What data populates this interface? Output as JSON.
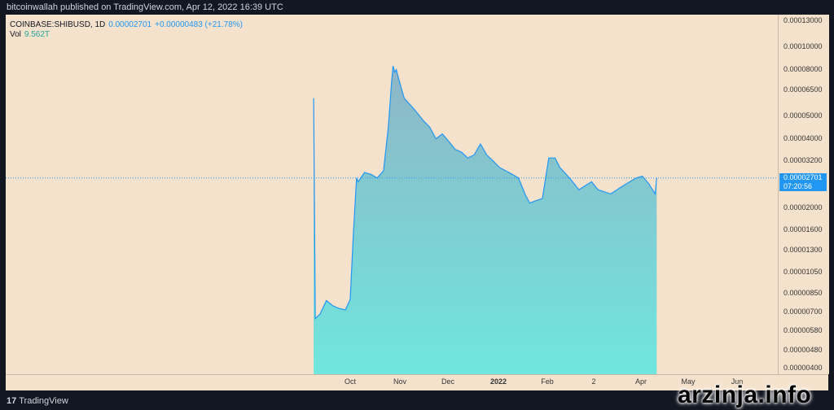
{
  "header": {
    "published": "bitcoinwallah published on TradingView.com, Apr 12, 2022 16:39 UTC"
  },
  "legend": {
    "symbol": "COINBASE:SHIBUSD, 1D",
    "price": "0.00002701",
    "change": "+0.00000483 (+21.78%)",
    "vol_label": "Vol",
    "vol_value": "9.562T"
  },
  "price_tag": {
    "price": "0.00002701",
    "countdown": "07:20:56"
  },
  "footer": {
    "brand": "TradingView",
    "watermark": "arzinja.info"
  },
  "colors": {
    "line": "#2196f3",
    "fill_top": "#8fb5c6",
    "fill_bottom": "#6fe6de",
    "background": "#f5e2cd"
  },
  "chart_data": {
    "type": "area",
    "title": "COINBASE:SHIBUSD, 1D",
    "scale": "log",
    "grid": false,
    "y_ticks": [
      "0.00013000",
      "0.00010000",
      "0.00008000",
      "0.00006500",
      "0.00005000",
      "0.00004000",
      "0.00003200",
      "0.00002000",
      "0.00001600",
      "0.00001300",
      "0.00001050",
      "0.00000850",
      "0.00000700",
      "0.00000580",
      "0.00000480",
      "0.00000400"
    ],
    "x_ticks": [
      "Oct",
      "Nov",
      "Dec",
      "2022",
      "Feb",
      "2",
      "Apr",
      "May",
      "Jun"
    ],
    "current_price": 2.701e-05,
    "series": [
      {
        "x": [
          "2021-09-08",
          "2021-09-09",
          "2021-09-12",
          "2021-09-16",
          "2021-09-20",
          "2021-09-24",
          "2021-09-28",
          "2021-10-01",
          "2021-10-03",
          "2021-10-05",
          "2021-10-06",
          "2021-10-10",
          "2021-10-14",
          "2021-10-18",
          "2021-10-22",
          "2021-10-25",
          "2021-10-27",
          "2021-10-28",
          "2021-10-29",
          "2021-10-30",
          "2021-11-01",
          "2021-11-04",
          "2021-11-08",
          "2021-11-12",
          "2021-11-16",
          "2021-11-20",
          "2021-11-24",
          "2021-11-28",
          "2021-12-02",
          "2021-12-06",
          "2021-12-10",
          "2021-12-14",
          "2021-12-18",
          "2021-12-22",
          "2021-12-26",
          "2021-12-30",
          "2022-01-03",
          "2022-01-07",
          "2022-01-11",
          "2022-01-15",
          "2022-01-19",
          "2022-01-22",
          "2022-01-26",
          "2022-01-30",
          "2022-02-03",
          "2022-02-07",
          "2022-02-10",
          "2022-02-14",
          "2022-02-18",
          "2022-02-22",
          "2022-02-26",
          "2022-03-02",
          "2022-03-06",
          "2022-03-10",
          "2022-03-14",
          "2022-03-18",
          "2022-03-22",
          "2022-03-26",
          "2022-03-30",
          "2022-04-03",
          "2022-04-07",
          "2022-04-11",
          "2022-04-12"
        ],
        "y": [
          6e-05,
          6.6e-06,
          6.9e-06,
          7.9e-06,
          7.5e-06,
          7.3e-06,
          7.2e-06,
          8e-06,
          1.55e-05,
          2.7e-05,
          2.6e-05,
          2.85e-05,
          2.8e-05,
          2.7e-05,
          2.9e-05,
          4.5e-05,
          7e-05,
          8.3e-05,
          7.8e-05,
          8e-05,
          7.1e-05,
          6e-05,
          5.6e-05,
          5.2e-05,
          4.8e-05,
          4.5e-05,
          4e-05,
          4.2e-05,
          3.9e-05,
          3.6e-05,
          3.5e-05,
          3.3e-05,
          3.4e-05,
          3.8e-05,
          3.4e-05,
          3.2e-05,
          3e-05,
          2.9e-05,
          2.8e-05,
          2.7e-05,
          2.3e-05,
          2.1e-05,
          2.15e-05,
          2.2e-05,
          3.3e-05,
          3.3e-05,
          3e-05,
          2.8e-05,
          2.6e-05,
          2.4e-05,
          2.5e-05,
          2.6e-05,
          2.4e-05,
          2.35e-05,
          2.3e-05,
          2.4e-05,
          2.5e-05,
          2.6e-05,
          2.7e-05,
          2.75e-05,
          2.55e-05,
          2.3e-05,
          2.7e-05
        ]
      }
    ]
  }
}
